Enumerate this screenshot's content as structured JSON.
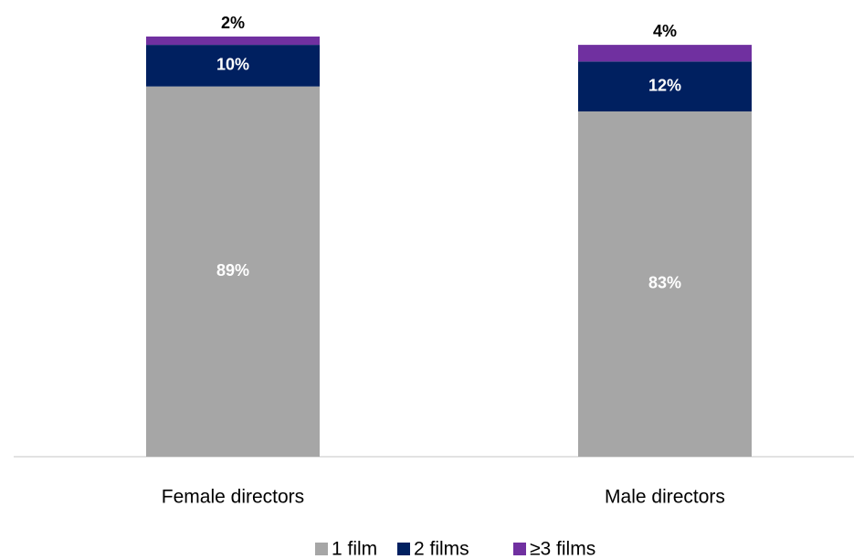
{
  "chart_data": {
    "type": "stacked_bar",
    "categories": [
      "Female directors",
      "Male directors"
    ],
    "series": [
      {
        "name": "1 film",
        "color": "#a6a6a6",
        "values": [
          89,
          83
        ],
        "value_labels": [
          "89%",
          "83%"
        ]
      },
      {
        "name": "2 films",
        "color": "#002060",
        "values": [
          10,
          12
        ],
        "value_labels": [
          "10%",
          "12%"
        ]
      },
      {
        "name": "≥3 films",
        "color": "#7030a0",
        "values": [
          2,
          4
        ],
        "value_labels": [
          "2%",
          "4%"
        ]
      }
    ],
    "legend": "bottom"
  }
}
